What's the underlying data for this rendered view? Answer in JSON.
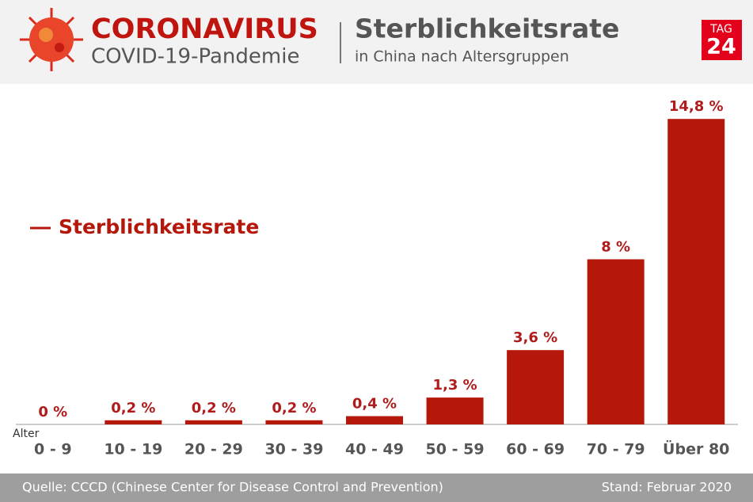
{
  "header": {
    "brand": "CORONAVIRUS",
    "subbrand": "COVID-19-Pandemie",
    "logo_top": "TAG",
    "logo_bottom": "24"
  },
  "chart_data": {
    "type": "bar",
    "title": "Sterblichkeitsrate",
    "subtitle": "in China nach Altersgruppen",
    "x_label": "Alter",
    "categories": [
      "0 - 9",
      "10 - 19",
      "20 - 29",
      "30 - 39",
      "40 - 49",
      "50 - 59",
      "60 - 69",
      "70 - 79",
      "Über 80"
    ],
    "series": [
      {
        "name": "Sterblichkeitsrate",
        "color": "#b5170b",
        "values": [
          0,
          0.2,
          0.2,
          0.2,
          0.4,
          1.3,
          3.6,
          8,
          14.8
        ],
        "value_labels": [
          "0 %",
          "0,2 %",
          "0,2 %",
          "0,2 %",
          "0,4 %",
          "1,3 %",
          "3,6 %",
          "8 %",
          "14,8 %"
        ]
      }
    ],
    "ylim": [
      0,
      15
    ],
    "legend": "left"
  },
  "footer": {
    "source": "Quelle: CCCD (Chinese Center for Disease Control and Prevention)",
    "date": "Stand: Februar 2020"
  }
}
